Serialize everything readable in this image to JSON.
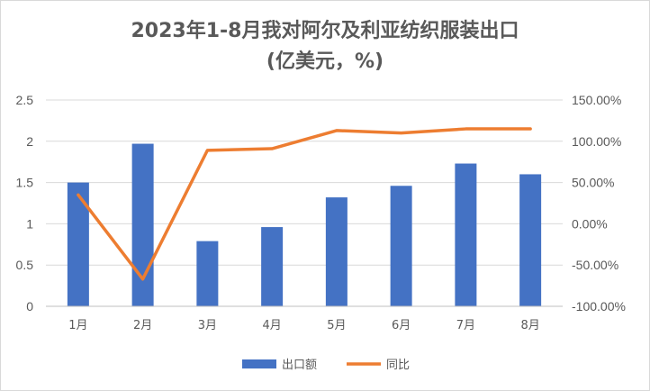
{
  "chart_data": {
    "type": "bar+line",
    "title_line1": "2023年1-8月我对阿尔及利亚纺织服装出口",
    "title_line2": "(亿美元，%)",
    "categories": [
      "1月",
      "2月",
      "3月",
      "4月",
      "5月",
      "6月",
      "7月",
      "8月"
    ],
    "series": [
      {
        "name": "出口额",
        "type": "bar",
        "axis": "left",
        "color": "#4472c4",
        "values": [
          1.5,
          1.97,
          0.79,
          0.96,
          1.32,
          1.46,
          1.73,
          1.6
        ]
      },
      {
        "name": "同比",
        "type": "line",
        "axis": "right",
        "color": "#ed7d31",
        "values": [
          35.0,
          -67.0,
          89.0,
          91.0,
          113.0,
          110.0,
          115.0,
          115.0
        ]
      }
    ],
    "y_left": {
      "min": 0,
      "max": 2.5,
      "ticks": [
        "0",
        "0.5",
        "1",
        "1.5",
        "2",
        "2.5"
      ]
    },
    "y_right": {
      "min": -100,
      "max": 150,
      "ticks": [
        "-100.00%",
        "-50.00%",
        "0.00%",
        "50.00%",
        "100.00%",
        "150.00%"
      ]
    },
    "grid": true,
    "legend_position": "bottom"
  }
}
